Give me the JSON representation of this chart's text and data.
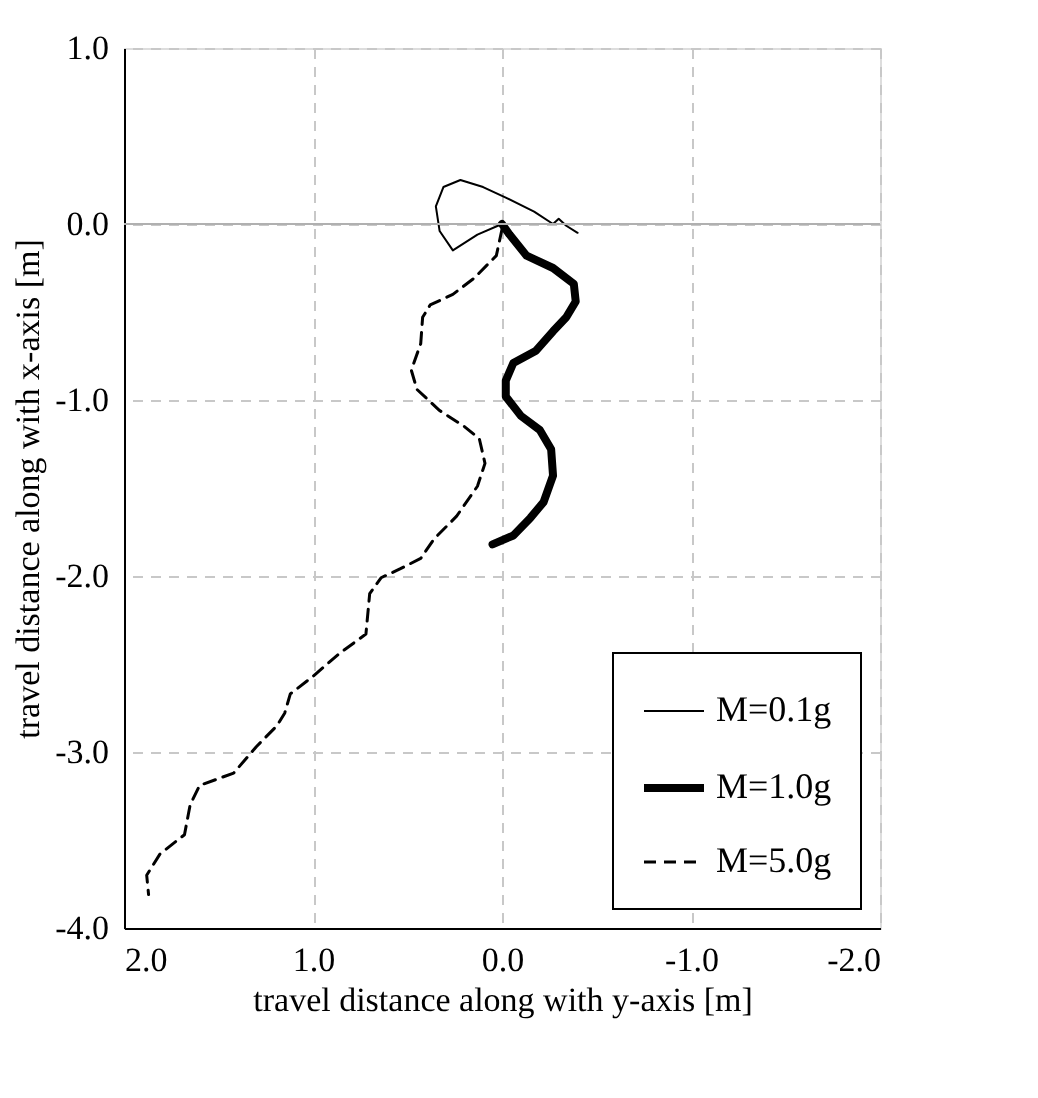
{
  "chart_data": {
    "type": "line",
    "xlabel": "travel distance along with y-axis [m]",
    "ylabel": "travel distance along with x-axis [m]",
    "xlim": [
      2.0,
      -2.0
    ],
    "xticks": [
      {
        "value": 2,
        "label": "2.0"
      },
      {
        "value": 1,
        "label": "1.0"
      },
      {
        "value": 0,
        "label": "0.0"
      },
      {
        "value": -1,
        "label": "-1.0"
      },
      {
        "value": -2,
        "label": "-2.0"
      }
    ],
    "ylim": [
      -4.0,
      1.0
    ],
    "yticks": [
      {
        "value": 1,
        "label": "1.0"
      },
      {
        "value": 0,
        "label": "0.0"
      },
      {
        "value": -1,
        "label": "-1.0"
      },
      {
        "value": -2,
        "label": "-2.0"
      },
      {
        "value": -3,
        "label": "-3.0"
      },
      {
        "value": -4,
        "label": "-4.0"
      }
    ],
    "grid": true,
    "legend": "bottom right",
    "ref_lines": [
      {
        "axis": "y",
        "value": 0,
        "color": "#b0b0b0",
        "line_style": "solid"
      }
    ],
    "series": [
      {
        "name": "M=0.1g",
        "color": "#000000",
        "line_style": "solid",
        "x": [
          0.0,
          0.13,
          0.26,
          0.33,
          0.35,
          0.31,
          0.22,
          0.1,
          -0.02,
          -0.17,
          -0.27,
          -0.3,
          -0.34,
          -0.4
        ],
        "values": [
          0.0,
          -0.06,
          -0.15,
          -0.04,
          0.1,
          0.21,
          0.25,
          0.21,
          0.15,
          0.07,
          0.0,
          0.03,
          -0.01,
          -0.05
        ]
      },
      {
        "name": "M=1.0g",
        "color": "#000000",
        "line_style": "solid",
        "x": [
          0.0,
          -0.04,
          -0.13,
          -0.27,
          -0.38,
          -0.39,
          -0.34,
          -0.27,
          -0.18,
          -0.06,
          -0.02,
          -0.02,
          -0.1,
          -0.2,
          -0.26,
          -0.27,
          -0.22,
          -0.15,
          -0.06,
          0.05
        ],
        "values": [
          0.0,
          -0.06,
          -0.18,
          -0.25,
          -0.34,
          -0.44,
          -0.53,
          -0.61,
          -0.72,
          -0.79,
          -0.89,
          -0.98,
          -1.09,
          -1.17,
          -1.28,
          -1.43,
          -1.58,
          -1.67,
          -1.77,
          -1.82
        ]
      },
      {
        "name": "M=5.0g",
        "color": "#000000",
        "line_style": "dashed",
        "x": [
          0.0,
          0.03,
          0.15,
          0.26,
          0.38,
          0.42,
          0.43,
          0.48,
          0.45,
          0.33,
          0.2,
          0.12,
          0.09,
          0.13,
          0.24,
          0.36,
          0.43,
          0.54,
          0.64,
          0.7,
          0.72,
          0.86,
          1.0,
          1.12,
          1.15,
          1.19,
          1.3,
          1.42,
          1.6,
          1.65,
          1.68,
          1.81,
          1.88,
          1.87
        ],
        "values": [
          -0.03,
          -0.18,
          -0.31,
          -0.4,
          -0.46,
          -0.53,
          -0.68,
          -0.83,
          -0.94,
          -1.06,
          -1.15,
          -1.22,
          -1.36,
          -1.49,
          -1.66,
          -1.79,
          -1.9,
          -1.96,
          -2.01,
          -2.1,
          -2.33,
          -2.44,
          -2.57,
          -2.67,
          -2.78,
          -2.85,
          -2.97,
          -3.12,
          -3.19,
          -3.3,
          -3.47,
          -3.58,
          -3.7,
          -3.81
        ]
      }
    ]
  }
}
